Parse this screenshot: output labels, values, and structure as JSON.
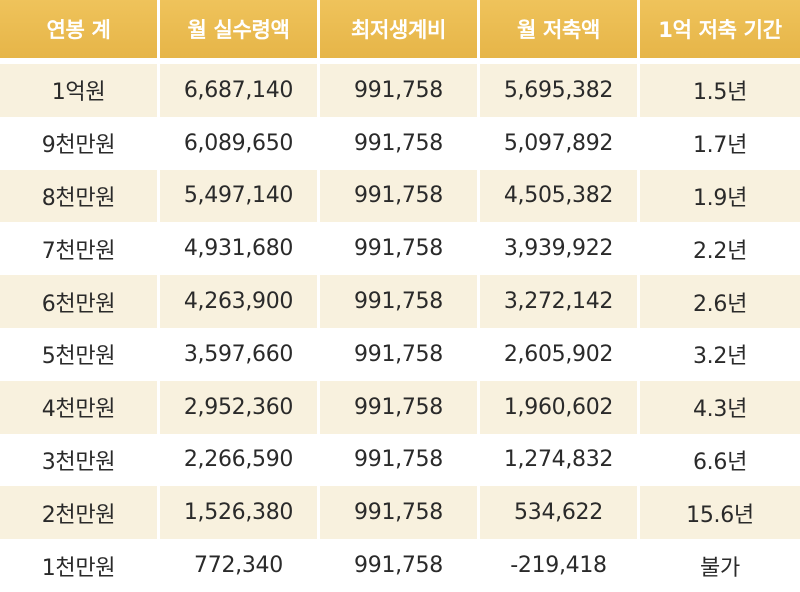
{
  "table": {
    "headers": [
      "연봉 계",
      "월 실수령액",
      "최저생계비",
      "월 저축액",
      "1억 저축 기간"
    ],
    "rows": [
      [
        "1억원",
        "6,687,140",
        "991,758",
        "5,695,382",
        "1.5년"
      ],
      [
        "9천만원",
        "6,089,650",
        "991,758",
        "5,097,892",
        "1.7년"
      ],
      [
        "8천만원",
        "5,497,140",
        "991,758",
        "4,505,382",
        "1.9년"
      ],
      [
        "7천만원",
        "4,931,680",
        "991,758",
        "3,939,922",
        "2.2년"
      ],
      [
        "6천만원",
        "4,263,900",
        "991,758",
        "3,272,142",
        "2.6년"
      ],
      [
        "5천만원",
        "3,597,660",
        "991,758",
        "2,605,902",
        "3.2년"
      ],
      [
        "4천만원",
        "2,952,360",
        "991,758",
        "1,960,602",
        "4.3년"
      ],
      [
        "3천만원",
        "2,266,590",
        "991,758",
        "1,274,832",
        "6.6년"
      ],
      [
        "2천만원",
        "1,526,380",
        "991,758",
        "534,622",
        "15.6년"
      ],
      [
        "1천만원",
        "772,340",
        "991,758",
        "-219,418",
        "불가"
      ]
    ]
  },
  "colors": {
    "header_bg": "#e9b94e",
    "header_text": "#ffffff",
    "row_stripe": "#f8f1de",
    "row_plain": "#ffffff",
    "cell_text": "#2a2a2a"
  }
}
